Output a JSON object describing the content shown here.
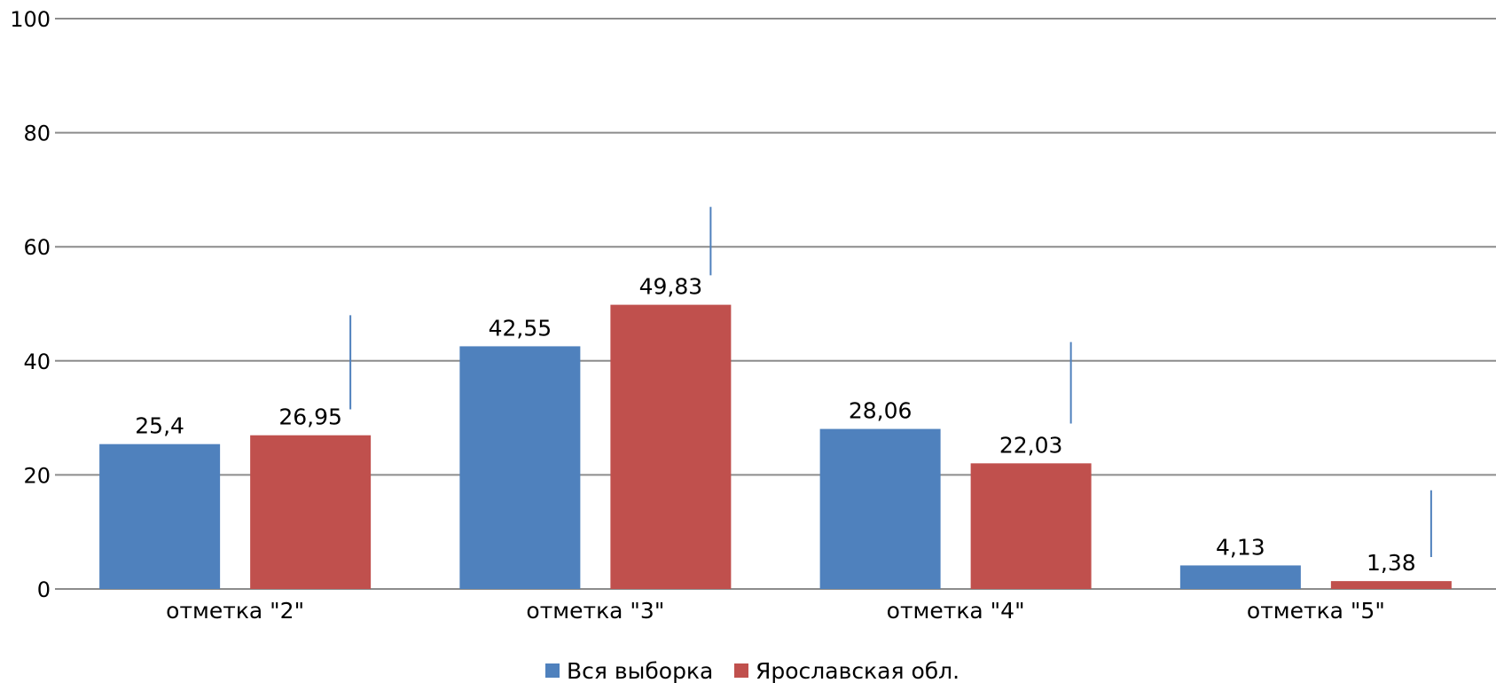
{
  "chart_data": {
    "type": "bar",
    "categories": [
      "отметка \"2\"",
      "отметка \"3\"",
      "отметка \"4\"",
      "отметка \"5\""
    ],
    "series": [
      {
        "name": "Вся выборка",
        "values": [
          25.4,
          42.55,
          28.06,
          4.13
        ],
        "labels": [
          "25,4",
          "42,55",
          "28,06",
          "4,13"
        ],
        "color": "#4f81bd"
      },
      {
        "name": "Ярославская обл.",
        "values": [
          26.95,
          49.83,
          22.03,
          1.38
        ],
        "labels": [
          "26,95",
          "49,83",
          "22,03",
          "1,38"
        ],
        "color": "#c0504d"
      }
    ],
    "error_bars": [
      {
        "low": 31.5,
        "high": 48
      },
      {
        "low": 55,
        "high": 67
      },
      {
        "low": 29,
        "high": 43.3
      },
      {
        "low": 5.6,
        "high": 17.3
      }
    ],
    "error_bar_color": "#4f81bd",
    "yticks": [
      "0",
      "20",
      "40",
      "60",
      "80",
      "100"
    ],
    "ylim": [
      0,
      100
    ],
    "title": "",
    "xlabel": "",
    "ylabel": "",
    "grid": true,
    "legend_position": "bottom"
  }
}
